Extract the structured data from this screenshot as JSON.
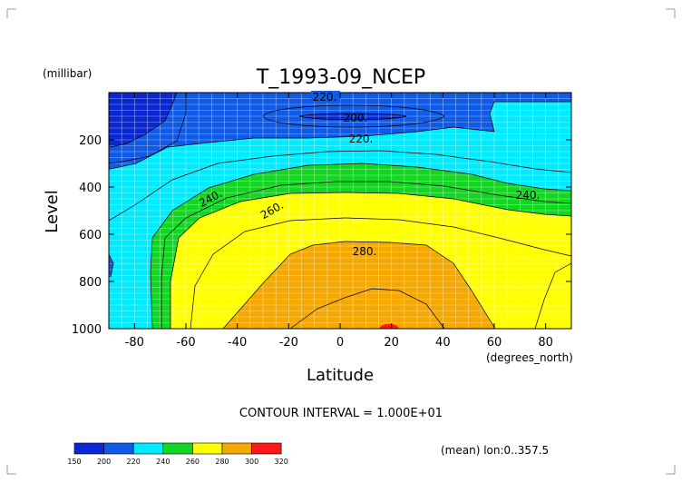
{
  "colors": {
    "below_200": "#0a28d2",
    "c200_220": "#0f5ae6",
    "c220_240": "#00ebff",
    "c240_260": "#13d622",
    "c260_280": "#ffff00",
    "c280_300": "#f5a800",
    "c300_320": "#ff1818",
    "contour_line": "#000000",
    "text": "#000000",
    "info_text": "#555555"
  },
  "chart_data": {
    "type": "contour",
    "title": "T_1993-09_NCEP",
    "xlabel": "Latitude",
    "x_unit": "(degrees_north)",
    "ylabel": "Level",
    "y_unit": "(millibar)",
    "xlim": [
      -90,
      90
    ],
    "ylim": [
      1000,
      0
    ],
    "x_ticks": [
      -80,
      -60,
      -40,
      -20,
      0,
      20,
      40,
      60,
      80
    ],
    "y_ticks": [
      200,
      400,
      600,
      800,
      1000
    ],
    "grid": true,
    "contour_labels": [
      "220.",
      "200.",
      "220.",
      "240.",
      "240.",
      "260.",
      "280."
    ],
    "contour_interval_text": "CONTOUR INTERVAL = 1.000E+01",
    "mean_text": "(mean) lon:0..357.5",
    "colorbar": {
      "ticks": [
        "150",
        "200",
        "220",
        "240",
        "260",
        "280",
        "300",
        "320"
      ]
    }
  }
}
